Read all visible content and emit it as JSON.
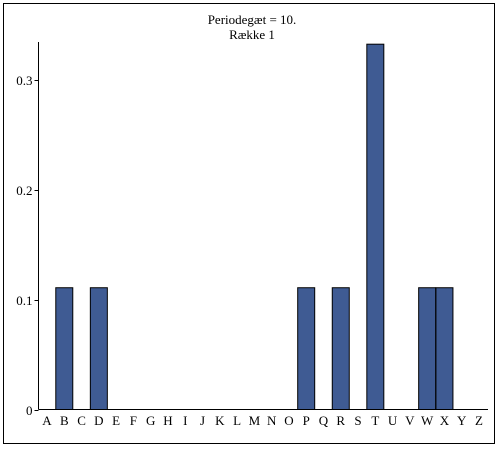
{
  "chart_data": {
    "type": "bar",
    "title": "Periodegæt = 10.",
    "subtitle": "Række 1",
    "categories": [
      "A",
      "B",
      "C",
      "D",
      "E",
      "F",
      "G",
      "H",
      "I",
      "J",
      "K",
      "L",
      "M",
      "N",
      "O",
      "P",
      "Q",
      "R",
      "S",
      "T",
      "U",
      "V",
      "W",
      "X",
      "Y",
      "Z"
    ],
    "values": [
      0,
      0.111,
      0,
      0.111,
      0,
      0,
      0,
      0,
      0,
      0,
      0,
      0,
      0,
      0,
      0,
      0.111,
      0,
      0.111,
      0,
      0.333,
      0,
      0,
      0.111,
      0.111,
      0,
      0
    ],
    "ylim": [
      0,
      0.335
    ],
    "yticks": [
      "0",
      "0.1",
      "0.2",
      "0.3"
    ],
    "ytick_values": [
      0,
      0.1,
      0.2,
      0.3
    ],
    "xlabel": "",
    "ylabel": "",
    "grid": false,
    "colors": {
      "bar_fill": "#3f5b93",
      "bar_stroke": "#000000",
      "axis": "#000000"
    }
  }
}
